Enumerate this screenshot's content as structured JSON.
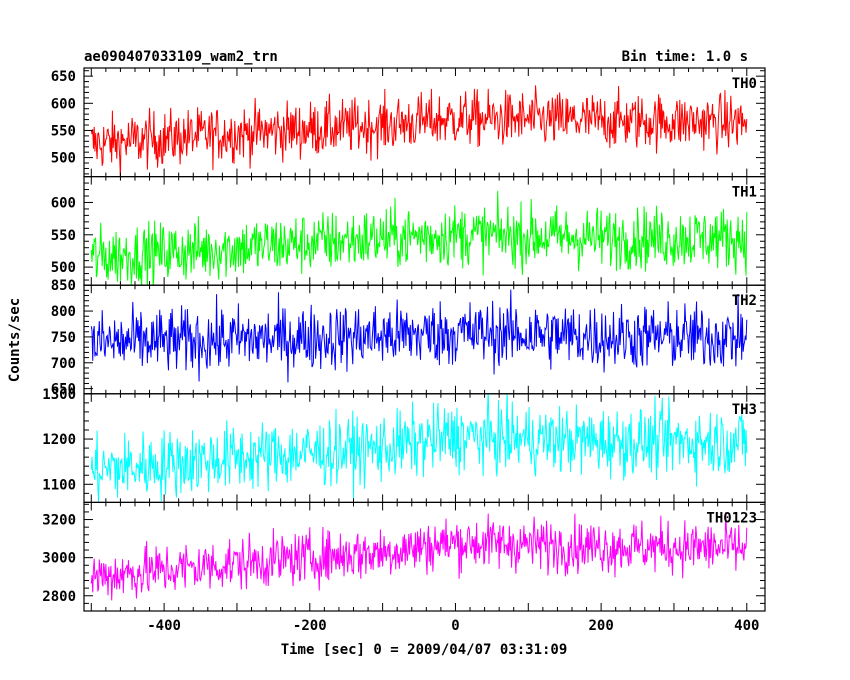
{
  "header": {
    "left_title": "ae090407033109_wam2_trn",
    "right_title": "Bin time: 1.0 s"
  },
  "chart_data": {
    "type": "line",
    "xlabel": "Time [sec] 0 = 2009/04/07 03:31:09",
    "ylabel": "Counts/sec",
    "xlim": [
      -510,
      425
    ],
    "xticks": [
      -400,
      -200,
      0,
      200,
      400
    ],
    "x_start": -500,
    "x_end": 400,
    "bin": 1.0,
    "panels": [
      {
        "name": "TH0",
        "color": "#ff0000",
        "ylim": [
          465,
          665
        ],
        "yticks": [
          500,
          550,
          600,
          650
        ],
        "trend": [
          [
            -500,
            525
          ],
          [
            -300,
            545
          ],
          [
            -100,
            560
          ],
          [
            0,
            572
          ],
          [
            100,
            570
          ],
          [
            200,
            568
          ],
          [
            400,
            565
          ]
        ],
        "noise": 26
      },
      {
        "name": "TH1",
        "color": "#00ff00",
        "ylim": [
          472,
          640
        ],
        "yticks": [
          500,
          550,
          600
        ],
        "trend": [
          [
            -500,
            515
          ],
          [
            -300,
            530
          ],
          [
            -100,
            545
          ],
          [
            0,
            550
          ],
          [
            100,
            548
          ],
          [
            200,
            545
          ],
          [
            400,
            545
          ]
        ],
        "noise": 24
      },
      {
        "name": "TH2",
        "color": "#0000ff",
        "ylim": [
          640,
          850
        ],
        "yticks": [
          650,
          700,
          750,
          800,
          850
        ],
        "trend": [
          [
            -500,
            738
          ],
          [
            -300,
            745
          ],
          [
            -100,
            752
          ],
          [
            0,
            758
          ],
          [
            100,
            755
          ],
          [
            200,
            750
          ],
          [
            400,
            750
          ]
        ],
        "noise": 32
      },
      {
        "name": "TH3",
        "color": "#00ffff",
        "ylim": [
          1060,
          1300
        ],
        "yticks": [
          1100,
          1200,
          1300
        ],
        "trend": [
          [
            -500,
            1130
          ],
          [
            -300,
            1160
          ],
          [
            -100,
            1180
          ],
          [
            0,
            1205
          ],
          [
            100,
            1200
          ],
          [
            200,
            1195
          ],
          [
            400,
            1195
          ]
        ],
        "noise": 38
      },
      {
        "name": "TH0123",
        "color": "#ff00ff",
        "ylim": [
          2720,
          3290
        ],
        "yticks": [
          2800,
          3000,
          3200
        ],
        "trend": [
          [
            -500,
            2900
          ],
          [
            -300,
            2970
          ],
          [
            -100,
            3030
          ],
          [
            0,
            3080
          ],
          [
            100,
            3070
          ],
          [
            200,
            3060
          ],
          [
            400,
            3050
          ]
        ],
        "noise": 70
      }
    ]
  }
}
